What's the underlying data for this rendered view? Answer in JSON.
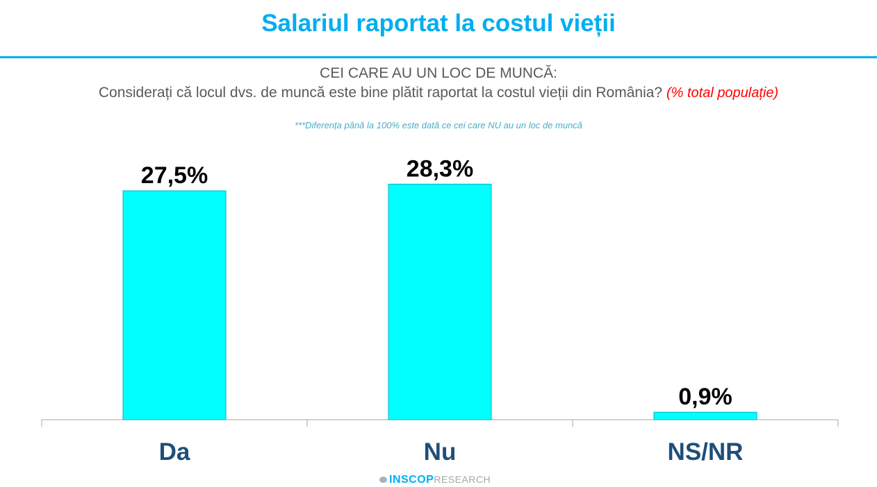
{
  "header": {
    "title": "Salariul raportat la costul vieții"
  },
  "chart_data": {
    "type": "bar",
    "title": "Salariul raportat la costul vieții",
    "subtitle_line1": "CEI CARE AU UN LOC DE MUNCĂ:",
    "subtitle_line2": "Considerați că locul dvs. de muncă este bine plătit raportat la costul vieții din România?",
    "subtitle_note": "(% total populație)",
    "footnote": "***Diferența până la 100% este dată ce cei care NU au un loc de muncă",
    "categories": [
      "Da",
      "Nu",
      "NS/NR"
    ],
    "values": [
      27.5,
      28.3,
      0.9
    ],
    "data_labels": [
      "27,5%",
      "28,3%",
      "0,9%"
    ],
    "xlabel": "",
    "ylabel": "",
    "ylim": [
      0,
      30
    ],
    "grid": false,
    "legend": "none",
    "bar_color": "#00ffff",
    "label_color": "#1f4e79"
  },
  "footer": {
    "logo_main": "INSCOP",
    "logo_sub": "RESEARCH"
  }
}
